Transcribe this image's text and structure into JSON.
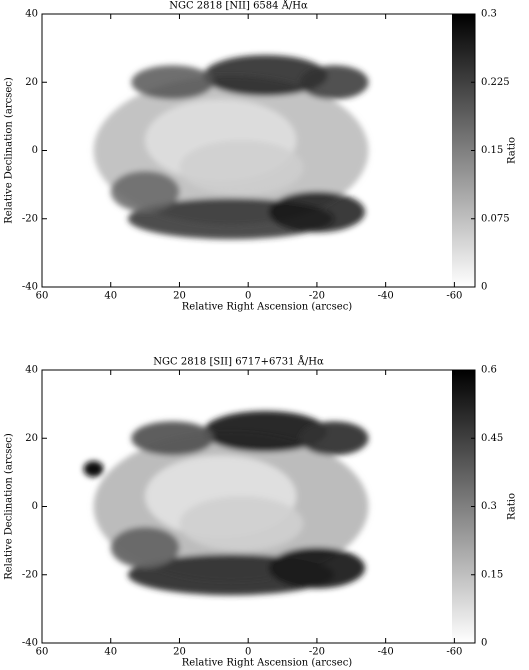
{
  "chart_data": [
    {
      "type": "image",
      "title": "NGC 2818   [NII] 6584 Å/Hα",
      "xlabel": "Relative Right Ascension (arcsec)",
      "ylabel": "Relative Declination (arcsec)",
      "xlim": [
        60,
        -66
      ],
      "xticks": [
        60,
        40,
        20,
        0,
        -20,
        -40,
        -60
      ],
      "ylim": [
        -40,
        40
      ],
      "yticks": [
        -40,
        -20,
        0,
        20,
        40
      ],
      "colorbar_label": "Ratio",
      "clim": [
        0,
        0.3
      ],
      "cticks": [
        0,
        0.075,
        0.15,
        0.225,
        0.3
      ]
    },
    {
      "type": "image",
      "title": "NGC 2818   [SII] 6717+6731 Å/Hα",
      "xlabel": "Relative Right Ascension (arcsec)",
      "ylabel": "Relative Declination (arcsec)",
      "xlim": [
        60,
        -66
      ],
      "xticks": [
        60,
        40,
        20,
        0,
        -20,
        -40,
        -60
      ],
      "ylim": [
        -40,
        40
      ],
      "yticks": [
        -40,
        -20,
        0,
        20,
        40
      ],
      "colorbar_label": "Ratio",
      "clim": [
        0,
        0.6
      ],
      "cticks": [
        0,
        0.15,
        0.3,
        0.45,
        0.6
      ]
    }
  ]
}
